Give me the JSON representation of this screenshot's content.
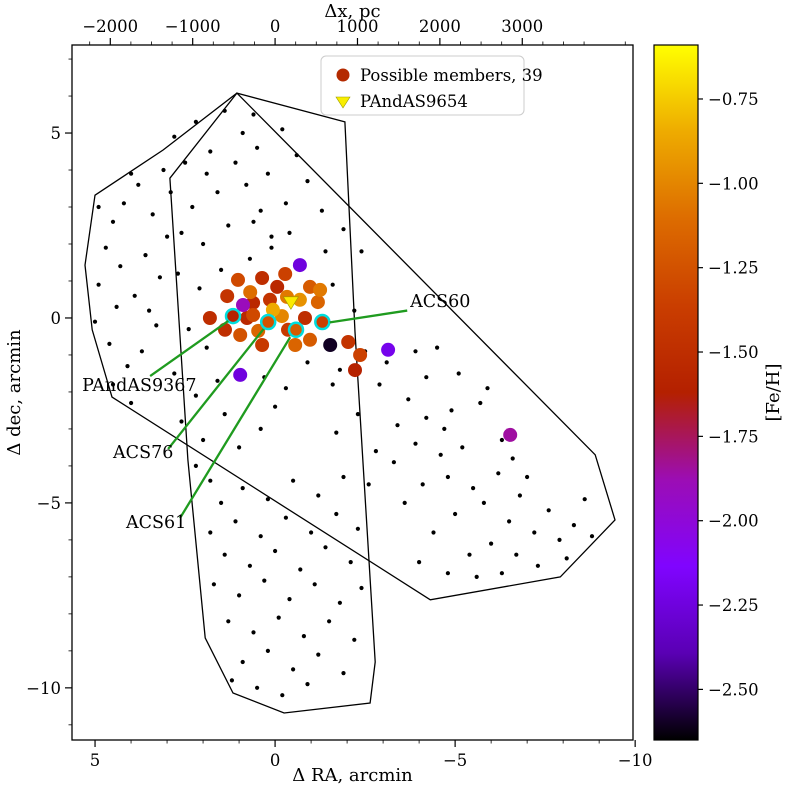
{
  "chart_data": {
    "type": "scatter",
    "x_axis": {
      "label": "Δ RA, arcmin",
      "range": [
        5.64,
        -9.94
      ],
      "ticks": [
        5,
        0,
        -5,
        -10
      ],
      "inverted": true
    },
    "y_axis": {
      "label": "Δ dec, arcmin",
      "range": [
        -11.41,
        7.38
      ],
      "ticks": [
        5,
        0,
        -5,
        -10
      ]
    },
    "top_axis": {
      "label": "Δx, pc",
      "ticks": [
        -2000,
        -1000,
        0,
        1000,
        2000,
        3000
      ],
      "pc_per_arcmin": -437
    },
    "legend": [
      {
        "label": "Possible members, 39",
        "marker": "circle",
        "color": "#b42a00"
      },
      {
        "label": "PAndAS9654",
        "marker": "triangle-down",
        "color": "#f9ee00"
      }
    ],
    "colorbar": {
      "label": "[Fe/H]",
      "vmin": -2.65,
      "vmax": -0.59,
      "ticks": [
        -0.75,
        -1.0,
        -1.25,
        -1.5,
        -1.75,
        -2.0,
        -2.25,
        -2.5
      ],
      "colormap": "gnuplot",
      "stops": [
        [
          0.0,
          "#000000"
        ],
        [
          0.125,
          "#5a00b4"
        ],
        [
          0.25,
          "#8004ff"
        ],
        [
          0.375,
          "#9c0db4"
        ],
        [
          0.5,
          "#b42000"
        ],
        [
          0.625,
          "#ca3e00"
        ],
        [
          0.75,
          "#dd6c00"
        ],
        [
          0.875,
          "#eeab00"
        ],
        [
          1.0,
          "#ffff00"
        ]
      ]
    },
    "annotation_color": "#1f9b1f",
    "cluster_ring_color": "#00dddd",
    "footprints": [
      [
        [
          2.92,
          3.78
        ],
        [
          1.06,
          6.08
        ],
        [
          -1.94,
          5.3
        ],
        [
          -2.22,
          -0.38
        ],
        [
          -2.78,
          -9.3
        ],
        [
          -2.64,
          -10.41
        ],
        [
          -0.25,
          -10.68
        ],
        [
          1.17,
          -10.14
        ],
        [
          1.94,
          -8.65
        ],
        [
          2.42,
          -3.84
        ]
      ],
      [
        [
          5.0,
          3.32
        ],
        [
          3.11,
          4.54
        ],
        [
          1.06,
          6.08
        ],
        [
          -8.89,
          -3.7
        ],
        [
          -9.44,
          -5.46
        ],
        [
          -7.92,
          -7.0
        ],
        [
          -4.31,
          -7.62
        ],
        [
          4.53,
          -2.14
        ],
        [
          5.08,
          -0.32
        ],
        [
          5.28,
          1.43
        ]
      ]
    ],
    "members": [
      [
        1.03,
        1.03,
        -1.3
      ],
      [
        0.36,
        1.08,
        -1.5
      ],
      [
        -0.69,
        1.43,
        -2.25
      ],
      [
        -0.33,
        0.57,
        -1.05
      ],
      [
        0.14,
        0.49,
        -1.45
      ],
      [
        0.61,
        0.41,
        -1.55
      ],
      [
        -0.69,
        0.49,
        -0.95
      ],
      [
        -1.19,
        0.43,
        -1.15
      ],
      [
        -0.19,
        0.05,
        -1.0
      ],
      [
        -0.36,
        -0.32,
        -1.4
      ],
      [
        0.47,
        -0.35,
        -1.15
      ],
      [
        0.78,
        0.0,
        -1.55
      ],
      [
        -0.83,
        0.0,
        -1.5
      ],
      [
        -0.97,
        -0.59,
        -1.2
      ],
      [
        -1.53,
        -0.73,
        -2.6
      ],
      [
        -2.03,
        -0.65,
        -1.45
      ],
      [
        -2.36,
        -1.0,
        -1.35
      ],
      [
        -3.14,
        -0.86,
        -2.2
      ],
      [
        -2.22,
        -1.41,
        -1.6
      ],
      [
        0.97,
        -0.46,
        -1.25
      ],
      [
        1.39,
        -0.32,
        -1.5
      ],
      [
        0.36,
        -0.73,
        -1.4
      ],
      [
        0.69,
        0.7,
        -1.1
      ],
      [
        -0.06,
        0.84,
        -1.55
      ],
      [
        -0.97,
        0.84,
        -1.2
      ],
      [
        0.89,
        0.35,
        -1.9
      ],
      [
        1.33,
        0.59,
        -1.45
      ],
      [
        1.81,
        0.0,
        -1.5
      ],
      [
        -0.56,
        -0.73,
        -1.15
      ],
      [
        0.97,
        -1.54,
        -2.25
      ],
      [
        -6.53,
        -3.16,
        -1.85
      ],
      [
        -1.25,
        0.76,
        -1.05
      ],
      [
        0.06,
        0.22,
        -0.85
      ],
      [
        0.61,
        0.08,
        -1.3
      ],
      [
        -0.28,
        1.19,
        -1.35
      ]
    ],
    "clusters": [
      {
        "name": "PAndAS9367",
        "x": 1.17,
        "y": 0.05,
        "feh": -1.6
      },
      {
        "name": "ACS76",
        "x": 0.19,
        "y": -0.11,
        "feh": -1.25
      },
      {
        "name": "ACS61",
        "x": -0.58,
        "y": -0.32,
        "feh": -1.2
      },
      {
        "name": "ACS60",
        "x": -1.31,
        "y": -0.11,
        "feh": -1.35
      }
    ],
    "pandas9654": {
      "x": -0.44,
      "y": 0.45,
      "feh": -0.65,
      "label": "PAndAS9654"
    },
    "annotations": [
      {
        "label": "PAndAS9367",
        "text_xy": [
          5.36,
          -1.97
        ],
        "line": [
          [
            3.47,
            -1.57
          ],
          [
            1.3,
            -0.08
          ]
        ]
      },
      {
        "label": "ACS76",
        "text_xy": [
          4.5,
          -3.78
        ],
        "line": [
          [
            2.97,
            -3.54
          ],
          [
            0.32,
            -0.3
          ]
        ]
      },
      {
        "label": "ACS61",
        "text_xy": [
          4.14,
          -5.68
        ],
        "line": [
          [
            2.64,
            -5.41
          ],
          [
            -0.42,
            -0.52
          ]
        ]
      },
      {
        "label": "ACS60",
        "text_xy": [
          -3.75,
          0.3
        ],
        "line": [
          [
            -3.67,
            0.2
          ],
          [
            -1.52,
            -0.12
          ]
        ]
      }
    ],
    "field_stars": [
      [
        4.9,
        3.0
      ],
      [
        4.5,
        2.6
      ],
      [
        4.2,
        3.1
      ],
      [
        4.7,
        1.9
      ],
      [
        4.3,
        1.4
      ],
      [
        4.9,
        0.9
      ],
      [
        4.4,
        0.3
      ],
      [
        5.0,
        -0.1
      ],
      [
        4.6,
        -0.7
      ],
      [
        4.1,
        -1.3
      ],
      [
        4.5,
        -1.8
      ],
      [
        3.9,
        0.6
      ],
      [
        3.6,
        1.7
      ],
      [
        3.4,
        2.8
      ],
      [
        3.8,
        3.6
      ],
      [
        3.3,
        -0.2
      ],
      [
        3.7,
        -0.9
      ],
      [
        3.2,
        1.1
      ],
      [
        3.0,
        2.2
      ],
      [
        3.5,
        0.2
      ],
      [
        2.8,
        4.9
      ],
      [
        2.2,
        5.3
      ],
      [
        1.4,
        5.6
      ],
      [
        0.9,
        5.0
      ],
      [
        2.5,
        4.2
      ],
      [
        1.8,
        4.5
      ],
      [
        1.1,
        4.2
      ],
      [
        0.5,
        4.6
      ],
      [
        2.9,
        3.4
      ],
      [
        2.3,
        3.0
      ],
      [
        1.6,
        3.4
      ],
      [
        0.8,
        3.6
      ],
      [
        2.6,
        2.3
      ],
      [
        2.0,
        2.0
      ],
      [
        1.3,
        2.5
      ],
      [
        0.4,
        2.9
      ],
      [
        2.7,
        1.2
      ],
      [
        2.1,
        0.8
      ],
      [
        1.5,
        1.3
      ],
      [
        0.7,
        1.6
      ],
      [
        0.1,
        2.2
      ],
      [
        -0.3,
        3.1
      ],
      [
        0.2,
        3.9
      ],
      [
        -0.6,
        4.4
      ],
      [
        1.9,
        3.9
      ],
      [
        -0.2,
        5.1
      ],
      [
        0.6,
        5.5
      ],
      [
        -0.9,
        3.7
      ],
      [
        0.1,
        1.9
      ],
      [
        -0.4,
        2.3
      ],
      [
        0.6,
        2.6
      ],
      [
        -0.8,
        1.5
      ],
      [
        0.3,
        -1.6
      ],
      [
        -0.3,
        -1.9
      ],
      [
        -0.9,
        -1.2
      ],
      [
        0.0,
        -2.4
      ],
      [
        -1.4,
        1.8
      ],
      [
        -1.6,
        -1.8
      ],
      [
        2.4,
        -0.3
      ],
      [
        1.9,
        -0.8
      ],
      [
        2.8,
        -1.5
      ],
      [
        2.2,
        -2.1
      ],
      [
        1.6,
        -1.7
      ],
      [
        2.6,
        -2.8
      ],
      [
        2.0,
        -3.3
      ],
      [
        1.4,
        -2.6
      ],
      [
        2.2,
        -4.0
      ],
      [
        1.8,
        -4.4
      ],
      [
        1.0,
        -3.5
      ],
      [
        0.4,
        -3.0
      ],
      [
        -1.3,
        2.9
      ],
      [
        -1.9,
        2.4
      ],
      [
        -2.4,
        1.8
      ],
      [
        -1.6,
        0.9
      ],
      [
        -2.2,
        0.2
      ],
      [
        -1.8,
        -1.4
      ],
      [
        -2.5,
        -0.9
      ],
      [
        -2.9,
        -1.8
      ],
      [
        -2.3,
        -2.6
      ],
      [
        -1.7,
        -3.1
      ],
      [
        -2.8,
        -3.6
      ],
      [
        -3.4,
        -2.9
      ],
      [
        -3.1,
        -1.2
      ],
      [
        -3.7,
        -2.2
      ],
      [
        -3.3,
        -3.9
      ],
      [
        -2.6,
        -4.5
      ],
      [
        -3.9,
        -3.4
      ],
      [
        -4.2,
        -2.7
      ],
      [
        -4.6,
        -3.7
      ],
      [
        -4.1,
        -4.5
      ],
      [
        -3.6,
        -5.0
      ],
      [
        -4.8,
        -4.3
      ],
      [
        -5.2,
        -3.5
      ],
      [
        -5.5,
        -4.6
      ],
      [
        -5.0,
        -5.3
      ],
      [
        -4.4,
        -5.8
      ],
      [
        -5.8,
        -5.0
      ],
      [
        -6.2,
        -4.2
      ],
      [
        -6.5,
        -5.5
      ],
      [
        -6.0,
        -6.1
      ],
      [
        -5.4,
        -6.4
      ],
      [
        -6.8,
        -4.8
      ],
      [
        -7.2,
        -5.8
      ],
      [
        -6.7,
        -6.4
      ],
      [
        -7.6,
        -5.2
      ],
      [
        -7.9,
        -6.0
      ],
      [
        -7.3,
        -6.7
      ],
      [
        -8.3,
        -5.6
      ],
      [
        -8.6,
        -4.9
      ],
      [
        -8.1,
        -6.5
      ],
      [
        -8.8,
        -5.9
      ],
      [
        -4.5,
        -0.8
      ],
      [
        -5.1,
        -1.5
      ],
      [
        -5.7,
        -2.3
      ],
      [
        -4.9,
        -2.5
      ],
      [
        -6.3,
        -3.3
      ],
      [
        -5.9,
        -1.9
      ],
      [
        -4.2,
        -1.6
      ],
      [
        -4.7,
        -3.0
      ],
      [
        -6.6,
        -3.8
      ],
      [
        -7.0,
        -4.3
      ],
      [
        -3.9,
        -0.9
      ],
      [
        1.5,
        -5.0
      ],
      [
        0.9,
        -4.6
      ],
      [
        0.2,
        -4.9
      ],
      [
        -0.5,
        -4.4
      ],
      [
        -1.2,
        -4.8
      ],
      [
        -1.9,
        -4.3
      ],
      [
        1.8,
        -5.8
      ],
      [
        1.1,
        -5.5
      ],
      [
        0.4,
        -5.9
      ],
      [
        -0.3,
        -5.4
      ],
      [
        -1.0,
        -5.8
      ],
      [
        -1.7,
        -5.3
      ],
      [
        -2.3,
        -5.7
      ],
      [
        1.4,
        -6.4
      ],
      [
        0.7,
        -6.7
      ],
      [
        0.0,
        -6.3
      ],
      [
        -0.7,
        -6.8
      ],
      [
        -1.4,
        -6.2
      ],
      [
        -2.1,
        -6.6
      ],
      [
        1.7,
        -7.2
      ],
      [
        1.0,
        -7.5
      ],
      [
        0.3,
        -7.1
      ],
      [
        -0.4,
        -7.6
      ],
      [
        -1.1,
        -7.2
      ],
      [
        -1.8,
        -7.7
      ],
      [
        -2.4,
        -7.3
      ],
      [
        1.3,
        -8.2
      ],
      [
        0.6,
        -8.5
      ],
      [
        -0.1,
        -8.1
      ],
      [
        -0.8,
        -8.6
      ],
      [
        -1.5,
        -8.2
      ],
      [
        -2.2,
        -8.7
      ],
      [
        0.9,
        -9.3
      ],
      [
        0.2,
        -9.0
      ],
      [
        -0.5,
        -9.5
      ],
      [
        -1.2,
        -9.1
      ],
      [
        -1.9,
        -9.6
      ],
      [
        0.5,
        -10.0
      ],
      [
        -0.2,
        -10.2
      ],
      [
        -0.9,
        -9.9
      ],
      [
        1.2,
        -9.8
      ],
      [
        -4.0,
        -6.6
      ],
      [
        -4.8,
        -6.9
      ],
      [
        -5.6,
        -7.0
      ],
      [
        -6.3,
        -6.9
      ],
      [
        4.0,
        3.9
      ],
      [
        3.1,
        4.0
      ],
      [
        4.0,
        -2.3
      ]
    ]
  }
}
